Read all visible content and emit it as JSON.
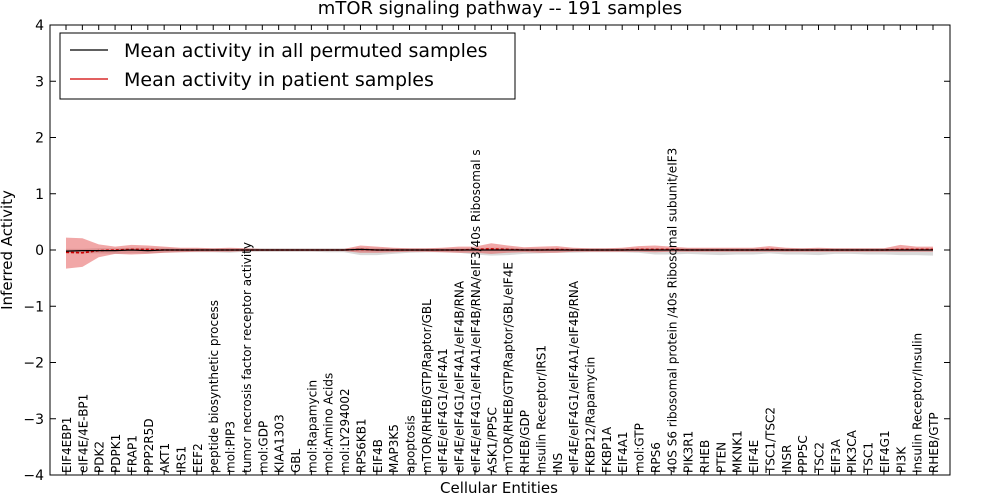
{
  "chart_data": {
    "type": "line",
    "title": "mTOR signaling pathway -- 191 samples",
    "xlabel": "Cellular Entities",
    "ylabel": "Inferred Activity",
    "ylim": [
      -4,
      4
    ],
    "yticks": [
      -4,
      -3,
      -2,
      -1,
      0,
      1,
      2,
      3,
      4
    ],
    "legend_position": "upper-left",
    "categories": [
      "EIF4EBP1",
      "eIF4E/4E-BP1",
      "PDK2",
      "PDPK1",
      "FRAP1",
      "PPP2R5D",
      "AKT1",
      "IRS1",
      "EEF2",
      "peptide biosynthetic process",
      "mol:PIP3",
      "tumor necrosis factor receptor activity",
      "mol:GDP",
      "KIAA1303",
      "GBL",
      "mol:Rapamycin",
      "mol:Amino Acids",
      "mol:LY294002",
      "RPS6KB1",
      "EIF4B",
      "MAP3K5",
      "apoptosis",
      "mTOR/RHEB/GTP/Raptor/GBL",
      "eIF4E/eIF4G1/eIF4A1",
      "eIF4E/eIF4G1/eIF4A1/eIF4B/RNA",
      "eIF4E/eIF4G1/eIF4A1/eIF4B/RNA/eIF3/40s Ribosomal s",
      "ASK1/PP5C",
      "mTOR/RHEB/GTP/Raptor/GBL/eIF4E",
      "RHEB/GDP",
      "Insulin Receptor/IRS1",
      "INS",
      "eIF4E/eIF4G1/eIF4A1/eIF4B/RNA",
      "FKBP12/Rapamycin",
      "FKBP1A",
      "EIF4A1",
      "mol:GTP",
      "RPS6",
      "40S S6 ribosomal protein /40s Ribosomal subunit/eIF3",
      "PIK3R1",
      "RHEB",
      "PTEN",
      "MKNK1",
      "EIF4E",
      "TSC1/TSC2",
      "INSR",
      "PPP5C",
      "TSC2",
      "EIF3A",
      "PIK3CA",
      "TSC1",
      "EIF4G1",
      "PI3K",
      "Insulin Receptor/Insulin",
      "RHEB/GTP"
    ],
    "series": [
      {
        "name": "Mean activity in all permuted samples",
        "color": "#000000",
        "values": [
          -0.02,
          -0.01,
          -0.01,
          -0.01,
          0,
          -0.01,
          0,
          0,
          0,
          0,
          0,
          0,
          0,
          0,
          0,
          0,
          0,
          0,
          0.01,
          0,
          0,
          0,
          0,
          0,
          0,
          0,
          0,
          0,
          0,
          0,
          0,
          0,
          0,
          0,
          0,
          0,
          0,
          0,
          0,
          0,
          0,
          0,
          0,
          0,
          0,
          0,
          0,
          0,
          0,
          0,
          0,
          0,
          0,
          0
        ],
        "band_upper": [
          0.02,
          0.02,
          0.03,
          0.03,
          0.04,
          0.04,
          0.04,
          0.03,
          0.03,
          0.03,
          0.03,
          0.03,
          0.03,
          0.03,
          0.03,
          0.03,
          0.03,
          0.03,
          0.04,
          0.04,
          0.03,
          0.03,
          0.03,
          0.03,
          0.03,
          0.03,
          0.04,
          0.04,
          0.03,
          0.03,
          0.03,
          0.03,
          0.03,
          0.03,
          0.03,
          0.03,
          0.03,
          0.03,
          0.03,
          0.03,
          0.03,
          0.03,
          0.03,
          0.03,
          0.03,
          0.03,
          0.03,
          0.03,
          0.03,
          0.03,
          0.03,
          0.03,
          0.03,
          0.03
        ],
        "band_lower": [
          -0.05,
          -0.06,
          -0.06,
          -0.07,
          -0.06,
          -0.06,
          -0.05,
          -0.04,
          -0.04,
          -0.04,
          -0.05,
          -0.03,
          -0.03,
          -0.03,
          -0.03,
          -0.03,
          -0.04,
          -0.04,
          -0.09,
          -0.09,
          -0.07,
          -0.05,
          -0.04,
          -0.04,
          -0.05,
          -0.08,
          -0.1,
          -0.09,
          -0.07,
          -0.06,
          -0.05,
          -0.05,
          -0.04,
          -0.04,
          -0.04,
          -0.05,
          -0.08,
          -0.08,
          -0.07,
          -0.08,
          -0.09,
          -0.08,
          -0.08,
          -0.06,
          -0.08,
          -0.08,
          -0.09,
          -0.07,
          -0.07,
          -0.08,
          -0.08,
          -0.09,
          -0.09,
          -0.1
        ]
      },
      {
        "name": "Mean activity in patient samples",
        "color": "#d00000",
        "values": [
          -0.04,
          -0.05,
          -0.01,
          0,
          0.01,
          0.01,
          0,
          0,
          0,
          0,
          0,
          0,
          0,
          0,
          0,
          0,
          0,
          0,
          0.01,
          0,
          0,
          0,
          0,
          0,
          0,
          0.01,
          0.02,
          0.01,
          0,
          0,
          0.01,
          0,
          0,
          0,
          0,
          0.01,
          0.01,
          0.01,
          0,
          0,
          0,
          0,
          0,
          0.01,
          0,
          0,
          0,
          0,
          0,
          0,
          0,
          0.01,
          0.01,
          0.01
        ],
        "band_upper": [
          0.22,
          0.21,
          0.1,
          0.06,
          0.09,
          0.08,
          0.06,
          0.04,
          0.04,
          0.03,
          0.04,
          0.03,
          0.02,
          0.02,
          0.02,
          0.02,
          0.02,
          0.02,
          0.08,
          0.06,
          0.04,
          0.03,
          0.03,
          0.04,
          0.06,
          0.06,
          0.12,
          0.08,
          0.05,
          0.06,
          0.07,
          0.04,
          0.03,
          0.03,
          0.04,
          0.07,
          0.08,
          0.06,
          0.04,
          0.04,
          0.04,
          0.04,
          0.04,
          0.07,
          0.04,
          0.03,
          0.04,
          0.03,
          0.03,
          0.03,
          0.03,
          0.09,
          0.06,
          0.06
        ],
        "band_lower": [
          -0.33,
          -0.3,
          -0.13,
          -0.07,
          -0.08,
          -0.07,
          -0.05,
          -0.04,
          -0.03,
          -0.03,
          -0.03,
          -0.02,
          -0.02,
          -0.02,
          -0.02,
          -0.02,
          -0.02,
          -0.02,
          -0.05,
          -0.05,
          -0.04,
          -0.03,
          -0.03,
          -0.04,
          -0.05,
          -0.05,
          -0.07,
          -0.05,
          -0.04,
          -0.05,
          -0.05,
          -0.03,
          -0.03,
          -0.03,
          -0.03,
          -0.03,
          -0.04,
          -0.03,
          -0.03,
          -0.03,
          -0.03,
          -0.03,
          -0.03,
          -0.03,
          -0.03,
          -0.03,
          -0.03,
          -0.03,
          -0.03,
          -0.03,
          -0.03,
          -0.03,
          -0.03,
          -0.03
        ]
      }
    ]
  }
}
